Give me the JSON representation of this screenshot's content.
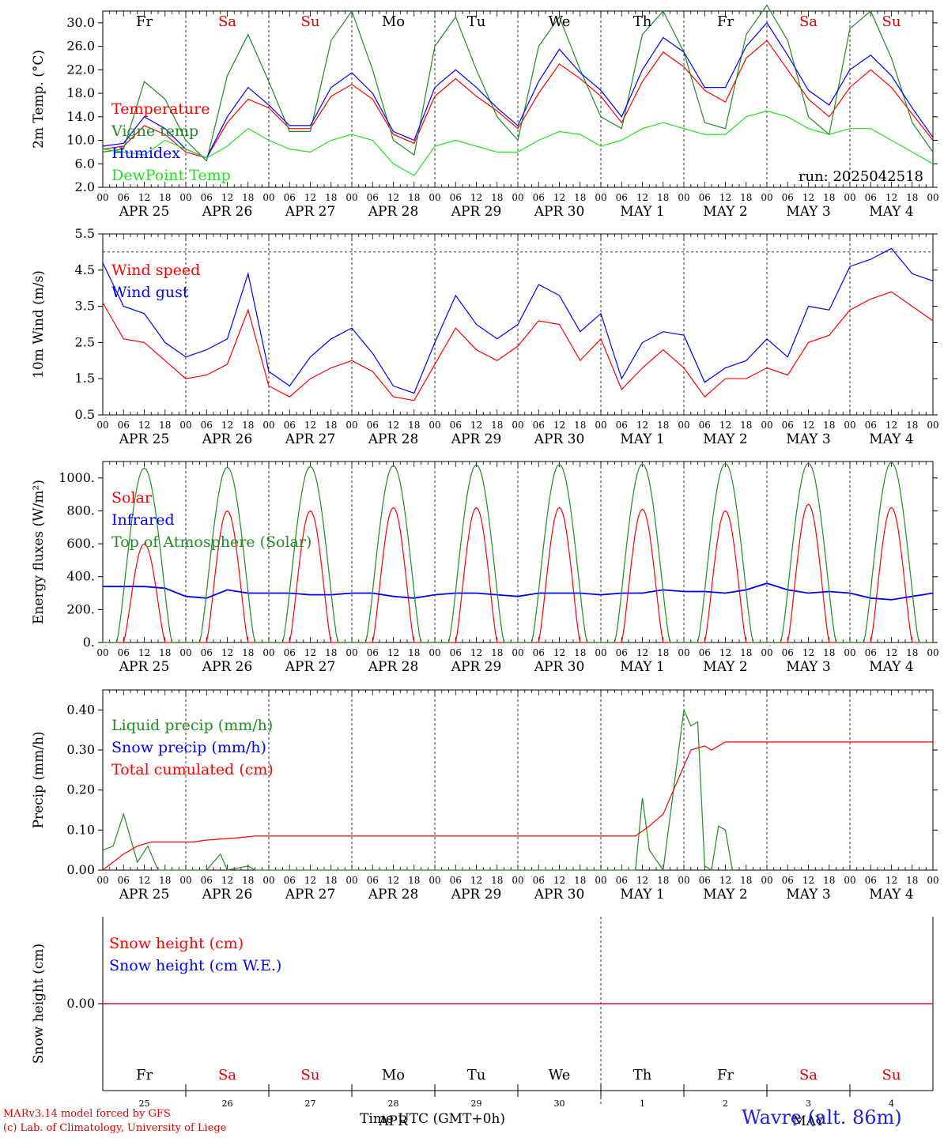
{
  "day_markers": [
    "00",
    "06",
    "12",
    "18"
  ],
  "date_labels": [
    "APR 25",
    "APR 26",
    "APR 27",
    "APR 28",
    "APR 29",
    "APR 30",
    "MAY  1",
    "MAY  2",
    "MAY  3",
    "MAY  4"
  ],
  "weekdays": [
    {
      "label": "Fr",
      "color": "#000000"
    },
    {
      "label": "Sa",
      "color": "#e00000"
    },
    {
      "label": "Su",
      "color": "#e00000"
    },
    {
      "label": "Mo",
      "color": "#000000"
    },
    {
      "label": "Tu",
      "color": "#000000"
    },
    {
      "label": "We",
      "color": "#000000"
    },
    {
      "label": "Th",
      "color": "#000000"
    },
    {
      "label": "Fr",
      "color": "#000000"
    },
    {
      "label": "Sa",
      "color": "#e00000"
    },
    {
      "label": "Su",
      "color": "#e00000"
    }
  ],
  "bottom_day_numbers": [
    "25",
    "26",
    "27",
    "28",
    "29",
    "30",
    "1",
    "2",
    "3",
    "4"
  ],
  "bottom_month_labels": [
    {
      "label": "APR",
      "day_index": 3
    },
    {
      "label": "MAY",
      "day_index": 8
    }
  ],
  "xlabel": "Time UTC (GMT+0h)",
  "footer": {
    "line1": "MARv3.14 model forced by GFS",
    "line2": "(c) Lab. of Climatology, University of Liege",
    "location": "Wavre (alt. 86m)"
  },
  "colors": {
    "red": "#ff0000",
    "green": "#228b22",
    "blue": "#0000ff",
    "lightgreen": "#22e022"
  },
  "chart_data": [
    {
      "type": "line",
      "id": "temp",
      "ylabel": "2m Temp. (°C)",
      "ylim": [
        2,
        32
      ],
      "yticks": [
        "2.0",
        "6.0",
        "10.0",
        "14.0",
        "18.0",
        "22.0",
        "26.0",
        "30.0"
      ],
      "ytick_values": [
        2,
        6,
        10,
        14,
        18,
        22,
        26,
        30
      ],
      "annotation": "run: 2025042518",
      "x_hours": [
        0,
        6,
        12,
        18,
        24,
        30,
        36,
        42,
        48,
        54,
        60,
        66,
        72,
        78,
        84,
        90,
        96,
        102,
        108,
        114,
        120,
        126,
        132,
        138,
        144,
        150,
        156,
        162,
        168,
        174,
        180,
        186,
        192,
        198,
        204,
        210,
        216,
        222,
        228,
        234,
        240
      ],
      "series": [
        {
          "name": "Temperature",
          "color": "red",
          "values": [
            8.5,
            9,
            12.5,
            11,
            8,
            7,
            13,
            17,
            15.5,
            12,
            12,
            17.5,
            19.5,
            17,
            11,
            9.5,
            17.5,
            20.5,
            17.5,
            15,
            12,
            18,
            23,
            20.5,
            17.5,
            13,
            20,
            25,
            22.5,
            18.5,
            16.5,
            24,
            27,
            22,
            17,
            14,
            19,
            22,
            19,
            14.5,
            10
          ]
        },
        {
          "name": "Vigne temp",
          "color": "green",
          "values": [
            8,
            8.5,
            20,
            17,
            10,
            6.5,
            21,
            28,
            20,
            11.5,
            11.5,
            27,
            32,
            22,
            10,
            7.5,
            26,
            31,
            22,
            14,
            10,
            26,
            31,
            22,
            14,
            12,
            28,
            32,
            25,
            13,
            12,
            28,
            33,
            27,
            14,
            11,
            29,
            32,
            24,
            13,
            8
          ]
        },
        {
          "name": "Humidex",
          "color": "blue",
          "values": [
            9,
            9.5,
            14,
            12,
            8.5,
            7,
            14,
            19,
            16,
            12.5,
            12.5,
            19,
            21.5,
            18,
            11.5,
            10,
            19,
            22,
            19,
            15.5,
            12.5,
            20,
            25.5,
            21.5,
            18.5,
            14,
            22,
            27.5,
            25,
            19,
            19,
            26,
            30,
            24.5,
            18.5,
            16,
            22,
            24.5,
            21,
            15.5,
            10.5
          ]
        },
        {
          "name": "DewPoint Temp",
          "color": "lightgreen",
          "values": [
            8.5,
            8,
            7.5,
            10,
            8.5,
            7,
            9,
            12,
            10,
            8.5,
            8,
            10,
            11,
            10,
            6,
            4,
            9,
            10,
            9,
            8,
            8,
            10,
            11.5,
            11,
            9,
            10,
            12,
            13,
            12,
            11,
            11,
            14,
            15,
            14,
            12,
            11,
            12,
            12,
            10,
            8,
            6
          ]
        }
      ]
    },
    {
      "type": "line",
      "id": "wind",
      "ylabel": "10m Wind (m/s)",
      "ylim": [
        0.5,
        5.5
      ],
      "yticks": [
        "0.5",
        "1.5",
        "2.5",
        "3.5",
        "4.5",
        "5.5"
      ],
      "ytick_values": [
        0.5,
        1.5,
        2.5,
        3.5,
        4.5,
        5.5
      ],
      "dashed_level": 5,
      "x_hours": [
        0,
        6,
        12,
        18,
        24,
        30,
        36,
        42,
        48,
        54,
        60,
        66,
        72,
        78,
        84,
        90,
        96,
        102,
        108,
        114,
        120,
        126,
        132,
        138,
        144,
        150,
        156,
        162,
        168,
        174,
        180,
        186,
        192,
        198,
        204,
        210,
        216,
        222,
        228,
        234,
        240
      ],
      "series": [
        {
          "name": "Wind speed",
          "color": "red",
          "values": [
            3.6,
            2.6,
            2.5,
            2,
            1.5,
            1.6,
            1.9,
            3.4,
            1.3,
            1,
            1.5,
            1.8,
            2,
            1.7,
            1,
            0.9,
            1.9,
            2.9,
            2.3,
            2,
            2.4,
            3.1,
            3,
            2,
            2.6,
            1.2,
            1.8,
            2.3,
            1.8,
            1,
            1.5,
            1.5,
            1.8,
            1.6,
            2.5,
            2.7,
            3.4,
            3.7,
            3.9,
            3.5,
            3.1
          ]
        },
        {
          "name": "Wind gust",
          "color": "blue",
          "values": [
            4.7,
            3.5,
            3.3,
            2.5,
            2.1,
            2.3,
            2.6,
            4.4,
            1.7,
            1.3,
            2.1,
            2.6,
            2.9,
            2.2,
            1.3,
            1.1,
            2.5,
            3.8,
            3,
            2.6,
            3,
            4.1,
            3.8,
            2.8,
            3.3,
            1.5,
            2.5,
            2.8,
            2.7,
            1.4,
            1.8,
            2,
            2.6,
            2.1,
            3.5,
            3.4,
            4.6,
            4.8,
            5.1,
            4.4,
            4.2
          ]
        }
      ]
    },
    {
      "type": "line",
      "id": "energy",
      "ylabel": "Energy fluxes (W/m²)",
      "ylim": [
        0,
        1100
      ],
      "yticks": [
        "0.",
        "200.",
        "400.",
        "600.",
        "800.",
        "1000."
      ],
      "ytick_values": [
        0,
        200,
        400,
        600,
        800,
        1000
      ],
      "series": [
        {
          "name": "Solar",
          "color": "red",
          "daily_peaks": [
            600,
            800,
            800,
            820,
            820,
            820,
            810,
            800,
            840,
            820
          ]
        },
        {
          "name": "Infrared",
          "color": "blue",
          "x_hours": [
            0,
            6,
            12,
            18,
            24,
            30,
            36,
            42,
            48,
            54,
            60,
            66,
            72,
            78,
            84,
            90,
            96,
            102,
            108,
            114,
            120,
            126,
            132,
            138,
            144,
            150,
            156,
            162,
            168,
            174,
            180,
            186,
            192,
            198,
            204,
            210,
            216,
            222,
            228,
            234,
            240
          ],
          "values": [
            340,
            340,
            340,
            330,
            280,
            270,
            320,
            300,
            300,
            300,
            290,
            290,
            300,
            300,
            280,
            270,
            290,
            300,
            300,
            290,
            280,
            300,
            300,
            300,
            290,
            300,
            300,
            320,
            310,
            310,
            300,
            320,
            360,
            320,
            300,
            310,
            300,
            270,
            260,
            280,
            300
          ]
        },
        {
          "name": "Top of Atmosphere (Solar)",
          "color": "green",
          "daily_peaks": [
            1060,
            1065,
            1070,
            1075,
            1080,
            1082,
            1085,
            1088,
            1090,
            1095
          ]
        }
      ]
    },
    {
      "type": "line",
      "id": "precip",
      "ylabel": "Precip (mm/h)",
      "ylim": [
        0,
        0.45
      ],
      "yticks": [
        "0.00",
        "0.10",
        "0.20",
        "0.30",
        "0.40"
      ],
      "ytick_values": [
        0,
        0.1,
        0.2,
        0.3,
        0.4
      ],
      "series": [
        {
          "name": "Liquid precip (mm/h)",
          "color": "green",
          "points": [
            [
              0,
              0.05
            ],
            [
              3,
              0.06
            ],
            [
              6,
              0.14
            ],
            [
              10,
              0.02
            ],
            [
              13,
              0.06
            ],
            [
              16,
              0
            ],
            [
              30,
              0
            ],
            [
              34,
              0.04
            ],
            [
              36,
              0
            ],
            [
              42,
              0.01
            ],
            [
              44,
              0
            ],
            [
              154,
              0
            ],
            [
              156,
              0.18
            ],
            [
              158,
              0.05
            ],
            [
              162,
              0
            ],
            [
              168,
              0.4
            ],
            [
              170,
              0.36
            ],
            [
              172,
              0.37
            ],
            [
              174,
              0.01
            ],
            [
              176,
              0
            ],
            [
              178,
              0.11
            ],
            [
              180,
              0.1
            ],
            [
              182,
              0
            ]
          ]
        },
        {
          "name": "Snow precip (mm/h)",
          "color": "blue",
          "points": []
        },
        {
          "name": "Total cumulated (cm)",
          "color": "red",
          "points": [
            [
              0,
              0
            ],
            [
              6,
              0.04
            ],
            [
              10,
              0.06
            ],
            [
              14,
              0.07
            ],
            [
              26,
              0.07
            ],
            [
              30,
              0.075
            ],
            [
              38,
              0.08
            ],
            [
              44,
              0.085
            ],
            [
              154,
              0.085
            ],
            [
              158,
              0.11
            ],
            [
              162,
              0.14
            ],
            [
              166,
              0.22
            ],
            [
              170,
              0.3
            ],
            [
              174,
              0.31
            ],
            [
              176,
              0.3
            ],
            [
              180,
              0.32
            ],
            [
              240,
              0.32
            ]
          ]
        }
      ]
    },
    {
      "type": "line",
      "id": "snow",
      "ylabel": "Snow height (cm)",
      "yticks": [
        "0.00"
      ],
      "ytick_values": [
        0
      ],
      "series": [
        {
          "name": "Snow height (cm)",
          "color": "red",
          "values": [
            0,
            0
          ]
        },
        {
          "name": "Snow height (cm W.E.)",
          "color": "blue",
          "values": [
            0,
            0
          ]
        }
      ]
    }
  ]
}
